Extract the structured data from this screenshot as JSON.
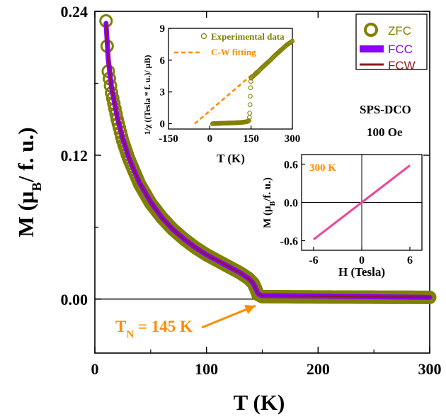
{
  "chart_data": [
    {
      "id": "main",
      "type": "line",
      "title": "",
      "xlabel": "T (K)",
      "ylabel_main": "M (μ",
      "ylabel_sub": "B",
      "ylabel_tail": "/ f. u.)",
      "xlim": [
        0,
        300
      ],
      "ylim": [
        -0.045,
        0.24
      ],
      "xticks": [
        0,
        100,
        200,
        300
      ],
      "xtick_labels": [
        "0",
        "100",
        "200",
        "300"
      ],
      "yticks": [
        0.0,
        0.12,
        0.24
      ],
      "ytick_labels": [
        "0.00",
        "0.12",
        "0.24"
      ],
      "legend_position": "top-right",
      "series": [
        {
          "name": "ZFC",
          "color": "#808000",
          "style": "open-circles",
          "x": [
            10,
            12,
            15,
            20,
            25,
            30,
            40,
            50,
            60,
            70,
            80,
            90,
            100,
            110,
            120,
            130,
            138,
            142,
            144,
            146,
            148,
            150,
            200,
            250,
            300
          ],
          "y": [
            0.232,
            0.19,
            0.172,
            0.15,
            0.132,
            0.118,
            0.096,
            0.08,
            0.068,
            0.058,
            0.05,
            0.043,
            0.037,
            0.032,
            0.027,
            0.022,
            0.017,
            0.013,
            0.009,
            0.004,
            0.003,
            0.002,
            0.0018,
            0.0016,
            0.0015
          ]
        },
        {
          "name": "FCC",
          "color": "#8a00ff",
          "style": "thick-line",
          "x": [
            10,
            12,
            15,
            20,
            25,
            30,
            40,
            50,
            60,
            70,
            80,
            90,
            100,
            110,
            120,
            130,
            138,
            142,
            144,
            146,
            148,
            150,
            200,
            250,
            300
          ],
          "y": [
            0.23,
            0.2,
            0.176,
            0.152,
            0.134,
            0.119,
            0.097,
            0.081,
            0.068,
            0.058,
            0.05,
            0.043,
            0.037,
            0.032,
            0.027,
            0.022,
            0.017,
            0.013,
            0.009,
            0.005,
            0.0035,
            0.003,
            0.0025,
            0.002,
            0.0015
          ]
        },
        {
          "name": "FCW",
          "color": "#8b1a1a",
          "style": "line",
          "x": [
            10,
            12,
            15,
            20,
            25,
            30,
            40,
            50,
            60,
            70,
            80,
            90,
            100,
            110,
            120,
            130,
            138,
            142,
            144,
            146,
            148,
            150,
            200,
            250,
            300
          ],
          "y": [
            0.23,
            0.2,
            0.176,
            0.152,
            0.134,
            0.119,
            0.097,
            0.081,
            0.068,
            0.058,
            0.05,
            0.043,
            0.037,
            0.032,
            0.027,
            0.022,
            0.017,
            0.013,
            0.009,
            0.005,
            0.0035,
            0.003,
            0.0025,
            0.002,
            0.0015
          ]
        }
      ],
      "annotations": [
        {
          "text_main": "T",
          "text_sub": "N",
          "text_tail": " = 145 K",
          "color": "#ff8c00",
          "arrow_to_x": 145,
          "arrow_to_y": -0.002
        },
        {
          "text": "SPS-DCO"
        },
        {
          "text": "100 Oe"
        }
      ]
    },
    {
      "id": "inset-inverse-chi",
      "type": "scatter",
      "xlabel": "T (K)",
      "ylabel": "1/χ ((Tesla * f. u.)/ μB)",
      "xlim": [
        -150,
        300
      ],
      "ylim": [
        -0.5,
        9
      ],
      "xticks": [
        -150,
        0,
        150,
        300
      ],
      "xtick_labels": [
        "-150",
        "0",
        "150",
        "300"
      ],
      "yticks": [
        0,
        3,
        6,
        9
      ],
      "ytick_labels": [
        "0",
        "3",
        "6",
        "9"
      ],
      "series": [
        {
          "name": "Experimental data",
          "color": "#808000",
          "style": "open-circles",
          "x": [
            10,
            20,
            30,
            40,
            50,
            60,
            70,
            80,
            90,
            100,
            110,
            120,
            130,
            138,
            142,
            144,
            145,
            146,
            147,
            148,
            149,
            150,
            160,
            175,
            190,
            205,
            220,
            235,
            250,
            265,
            280,
            300
          ],
          "y": [
            0.0,
            0.02,
            0.03,
            0.04,
            0.05,
            0.06,
            0.07,
            0.08,
            0.09,
            0.1,
            0.12,
            0.14,
            0.17,
            0.22,
            0.3,
            0.6,
            1.0,
            1.8,
            2.6,
            3.4,
            4.0,
            4.3,
            4.55,
            4.9,
            5.3,
            5.65,
            6.0,
            6.4,
            6.75,
            7.1,
            7.45,
            7.8
          ]
        },
        {
          "name": "C-W fitting",
          "color": "#ff8c00",
          "style": "dashed-line",
          "x": [
            -55,
            300
          ],
          "y": [
            0,
            7.9
          ]
        }
      ]
    },
    {
      "id": "inset-mh",
      "type": "line",
      "xlabel": "H (Tesla)",
      "ylabel_main": "M (μ",
      "ylabel_sub": "B",
      "ylabel_tail": "/f. u.)",
      "xlim": [
        -7.5,
        7.5
      ],
      "ylim": [
        -0.75,
        0.75
      ],
      "xticks": [
        -6,
        0,
        6
      ],
      "xtick_labels": [
        "-6",
        "0",
        "6"
      ],
      "yticks": [
        -0.6,
        0.0,
        0.6
      ],
      "ytick_labels": [
        "-0.6",
        "0.0",
        "0.6"
      ],
      "label": "300 K",
      "label_color": "#ff8c00",
      "series": [
        {
          "name": "M-H 300 K",
          "color": "#ee4499",
          "x": [
            -6,
            6
          ],
          "y": [
            -0.58,
            0.58
          ]
        }
      ]
    }
  ]
}
